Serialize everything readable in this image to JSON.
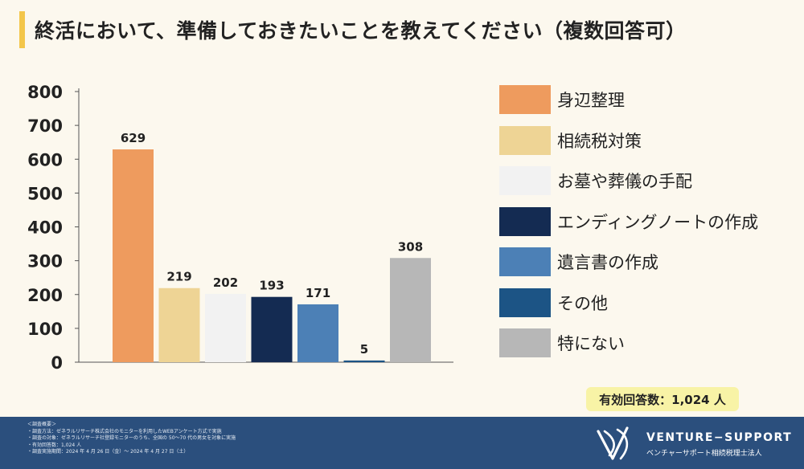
{
  "title": "終活において、準備しておきたいことを教えてください（複数回答可）",
  "chart_data": {
    "type": "bar",
    "categories": [
      "身辺整理",
      "相続税対策",
      "お墓や葬儀の手配",
      "エンディングノートの作成",
      "遺言書の作成",
      "その他",
      "特にない"
    ],
    "values": [
      629,
      219,
      202,
      193,
      171,
      5,
      308
    ],
    "colors": [
      "#ee9b5e",
      "#eed495",
      "#f2f2f2",
      "#142b52",
      "#4c80b6",
      "#1c5485",
      "#b7b7b7"
    ],
    "yticks": [
      "0",
      "100",
      "200",
      "300",
      "400",
      "500",
      "600",
      "700",
      "800"
    ],
    "ylim": [
      0,
      800
    ],
    "grid": false,
    "legend_position": "right"
  },
  "total_label": "有効回答数：1,024 人",
  "notes": [
    "＜調査概要＞",
    "・調査方法：ゼネラルリサーチ株式会社のモニターを利用したWEBアンケート方式で実施",
    "・調査の対象：ゼネラルリサーチ社登録モニターのうち、全国の 50～70 代の男女を対象に実施",
    "・有効回答数：1,024 人",
    "・調査実施期間：2024 年 4 月 26 日（金）～ 2024 年 4 月 27 日（土）"
  ],
  "brand": {
    "name": "VENTURE−SUPPORT",
    "sub": "ベンチャーサポート相続税理士法人",
    "icon": "venture-support-logo"
  }
}
